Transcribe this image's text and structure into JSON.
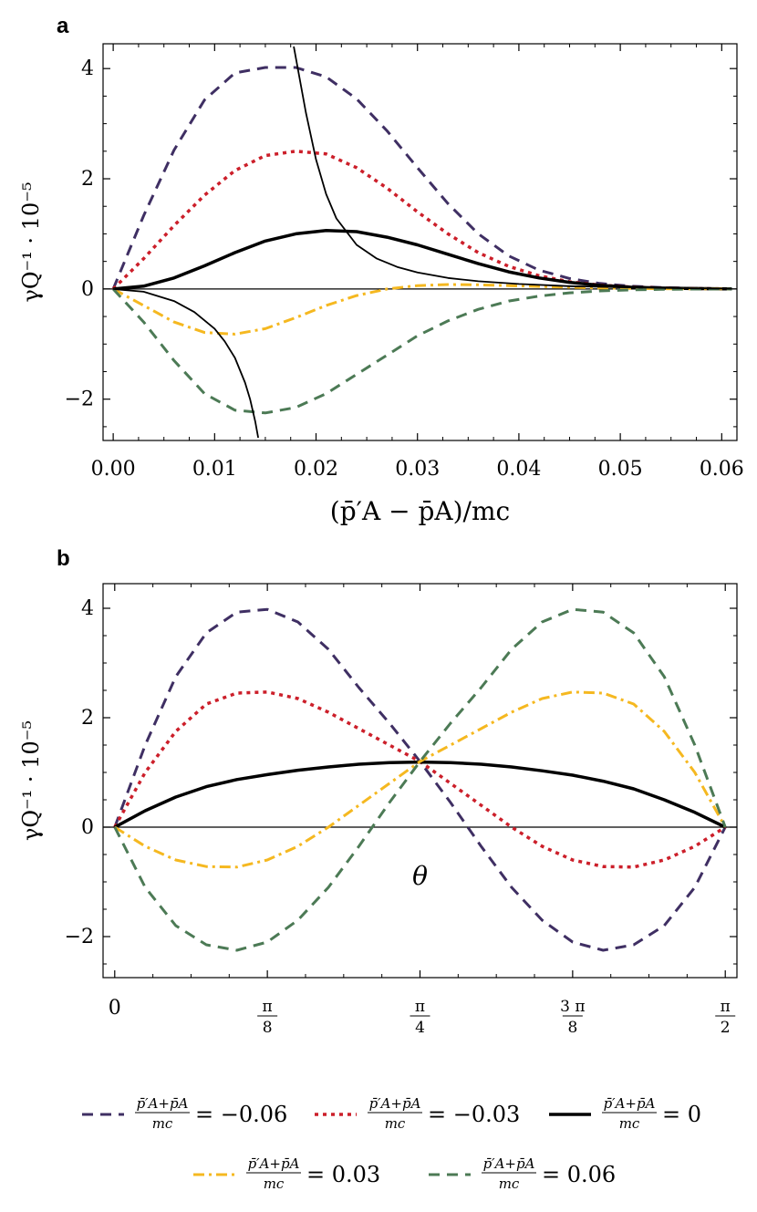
{
  "chart_data": [
    {
      "panel": "a",
      "type": "line",
      "xlabel": "(p̄′A − p̄A)/mc",
      "ylabel": "γQ⁻¹ · 10⁻⁵",
      "xlim": [
        -0.001,
        0.0615
      ],
      "ylim": [
        -2.75,
        4.45
      ],
      "x_ticks": [
        "0.00",
        "0.01",
        "0.02",
        "0.03",
        "0.04",
        "0.05",
        "0.06"
      ],
      "x_tick_values": [
        0,
        0.01,
        0.02,
        0.03,
        0.04,
        0.05,
        0.06
      ],
      "y_ticks": [
        "−2",
        "0",
        "2",
        "4"
      ],
      "y_tick_values": [
        -2,
        0,
        2,
        4
      ],
      "series": [
        {
          "name": "-0.06",
          "color": "#3f2f63",
          "dash": "dashed",
          "x": [
            0,
            0.003,
            0.006,
            0.009,
            0.012,
            0.015,
            0.018,
            0.021,
            0.024,
            0.027,
            0.03,
            0.033,
            0.036,
            0.039,
            0.042,
            0.045,
            0.048,
            0.051,
            0.054,
            0.057,
            0.06,
            0.061
          ],
          "y": [
            0,
            1.33,
            2.52,
            3.43,
            3.92,
            4.02,
            4.02,
            3.85,
            3.45,
            2.87,
            2.2,
            1.55,
            1.0,
            0.6,
            0.34,
            0.19,
            0.1,
            0.05,
            0.025,
            0.012,
            0.005,
            0.004
          ]
        },
        {
          "name": "-0.03",
          "color": "#cc1f2a",
          "dash": "dotted",
          "x": [
            0,
            0.003,
            0.006,
            0.009,
            0.012,
            0.015,
            0.018,
            0.021,
            0.024,
            0.027,
            0.03,
            0.033,
            0.036,
            0.039,
            0.042,
            0.045,
            0.048,
            0.051,
            0.054,
            0.057,
            0.06,
            0.061
          ],
          "y": [
            0,
            0.55,
            1.15,
            1.7,
            2.15,
            2.42,
            2.5,
            2.45,
            2.2,
            1.83,
            1.4,
            1.0,
            0.66,
            0.41,
            0.24,
            0.13,
            0.07,
            0.035,
            0.017,
            0.008,
            0.003,
            0.002
          ]
        },
        {
          "name": "0",
          "color": "#000000",
          "dash": "solid",
          "x": [
            0,
            0.003,
            0.006,
            0.009,
            0.012,
            0.015,
            0.018,
            0.021,
            0.024,
            0.027,
            0.03,
            0.033,
            0.036,
            0.039,
            0.042,
            0.045,
            0.048,
            0.051,
            0.054,
            0.057,
            0.06,
            0.061
          ],
          "y": [
            0,
            0.05,
            0.2,
            0.42,
            0.66,
            0.87,
            1.0,
            1.06,
            1.04,
            0.94,
            0.8,
            0.63,
            0.46,
            0.31,
            0.2,
            0.12,
            0.065,
            0.033,
            0.016,
            0.008,
            0.003,
            0.002
          ]
        },
        {
          "name": "0.03",
          "color": "#f5b820",
          "dash": "dashdot",
          "x": [
            0,
            0.003,
            0.006,
            0.009,
            0.012,
            0.015,
            0.018,
            0.021,
            0.024,
            0.027,
            0.03,
            0.033,
            0.036,
            0.039,
            0.042,
            0.045,
            0.048,
            0.051,
            0.054,
            0.057,
            0.06,
            0.061
          ],
          "y": [
            0,
            -0.3,
            -0.6,
            -0.79,
            -0.82,
            -0.72,
            -0.52,
            -0.3,
            -0.12,
            0.0,
            0.06,
            0.08,
            0.075,
            0.06,
            0.045,
            0.03,
            0.018,
            0.01,
            0.005,
            0.002,
            0.001,
            0.0
          ]
        },
        {
          "name": "0.06",
          "color": "#4c7a55",
          "dash": "dashed",
          "x": [
            0,
            0.003,
            0.006,
            0.009,
            0.012,
            0.015,
            0.018,
            0.021,
            0.024,
            0.027,
            0.03,
            0.033,
            0.036,
            0.039,
            0.042,
            0.045,
            0.048,
            0.051,
            0.054,
            0.057,
            0.06,
            0.061
          ],
          "y": [
            0,
            -0.6,
            -1.3,
            -1.9,
            -2.2,
            -2.25,
            -2.15,
            -1.9,
            -1.55,
            -1.2,
            -0.85,
            -0.58,
            -0.37,
            -0.22,
            -0.13,
            -0.07,
            -0.035,
            -0.017,
            -0.008,
            -0.003,
            -0.001,
            -0.001
          ]
        },
        {
          "name": "upper boundary",
          "color": "#000000",
          "dash": "thin",
          "x": [
            0.0178,
            0.019,
            0.02,
            0.021,
            0.022,
            0.024,
            0.026,
            0.028,
            0.03,
            0.033,
            0.036,
            0.04,
            0.045,
            0.05,
            0.055,
            0.061
          ],
          "y": [
            4.4,
            3.2,
            2.35,
            1.72,
            1.28,
            0.8,
            0.55,
            0.4,
            0.3,
            0.2,
            0.14,
            0.09,
            0.05,
            0.03,
            0.015,
            0.005
          ]
        },
        {
          "name": "lower boundary",
          "color": "#000000",
          "dash": "thin",
          "x": [
            0,
            0.003,
            0.006,
            0.008,
            0.01,
            0.011,
            0.012,
            0.013,
            0.0135,
            0.014,
            0.0143
          ],
          "y": [
            0,
            -0.05,
            -0.22,
            -0.42,
            -0.72,
            -0.95,
            -1.25,
            -1.7,
            -2.0,
            -2.4,
            -2.7
          ]
        }
      ]
    },
    {
      "panel": "b",
      "type": "line",
      "xlabel": "θ",
      "ylabel": "γQ⁻¹ · 10⁻⁵",
      "xlim": [
        -0.03,
        1.6008
      ],
      "ylim": [
        -2.75,
        4.45
      ],
      "x_ticks": [
        {
          "num": "",
          "den": "",
          "plain": "0"
        },
        {
          "num": "π",
          "den": "8",
          "plain": ""
        },
        {
          "num": "π",
          "den": "4",
          "plain": ""
        },
        {
          "num": "3 π",
          "den": "8",
          "plain": ""
        },
        {
          "num": "π",
          "den": "2",
          "plain": ""
        }
      ],
      "x_tick_values": [
        0,
        0.3927,
        0.7854,
        1.1781,
        1.5708
      ],
      "y_ticks": [
        "−2",
        "0",
        "2",
        "4"
      ],
      "y_tick_values": [
        -2,
        0,
        2,
        4
      ],
      "series": [
        {
          "name": "-0.06",
          "color": "#3f2f63",
          "dash": "dashed",
          "x": [
            0,
            0.0785,
            0.157,
            0.2356,
            0.3142,
            0.3927,
            0.4712,
            0.5498,
            0.6283,
            0.7069,
            0.7854,
            0.864,
            0.9425,
            1.021,
            1.0996,
            1.1781,
            1.2566,
            1.3352,
            1.4137,
            1.4923,
            1.5708
          ],
          "y": [
            0,
            1.5,
            2.75,
            3.55,
            3.93,
            3.98,
            3.75,
            3.25,
            2.55,
            1.9,
            1.2,
            0.45,
            -0.35,
            -1.1,
            -1.7,
            -2.1,
            -2.25,
            -2.15,
            -1.8,
            -1.1,
            0
          ]
        },
        {
          "name": "-0.03",
          "color": "#cc1f2a",
          "dash": "dotted",
          "x": [
            0,
            0.0785,
            0.157,
            0.2356,
            0.3142,
            0.3927,
            0.4712,
            0.5498,
            0.6283,
            0.7069,
            0.7854,
            0.864,
            0.9425,
            1.021,
            1.0996,
            1.1781,
            1.2566,
            1.3352,
            1.4137,
            1.4923,
            1.5708
          ],
          "y": [
            0,
            1.0,
            1.75,
            2.25,
            2.45,
            2.47,
            2.35,
            2.1,
            1.8,
            1.5,
            1.2,
            0.8,
            0.4,
            0.0,
            -0.35,
            -0.6,
            -0.72,
            -0.73,
            -0.6,
            -0.35,
            0
          ]
        },
        {
          "name": "0",
          "color": "#000000",
          "dash": "solid",
          "x": [
            0,
            0.0785,
            0.157,
            0.2356,
            0.3142,
            0.3927,
            0.4712,
            0.5498,
            0.6283,
            0.7069,
            0.7854,
            0.864,
            0.9425,
            1.021,
            1.0996,
            1.1781,
            1.2566,
            1.3352,
            1.4137,
            1.4923,
            1.5708
          ],
          "y": [
            0,
            0.3,
            0.55,
            0.74,
            0.87,
            0.96,
            1.04,
            1.1,
            1.15,
            1.18,
            1.19,
            1.18,
            1.15,
            1.1,
            1.03,
            0.95,
            0.84,
            0.7,
            0.5,
            0.27,
            0
          ]
        },
        {
          "name": "0.03",
          "color": "#f5b820",
          "dash": "dashdot",
          "x": [
            0,
            0.0785,
            0.157,
            0.2356,
            0.3142,
            0.3927,
            0.4712,
            0.5498,
            0.6283,
            0.7069,
            0.7854,
            0.864,
            0.9425,
            1.021,
            1.0996,
            1.1781,
            1.2566,
            1.3352,
            1.4137,
            1.4923,
            1.5708
          ],
          "y": [
            0,
            -0.35,
            -0.6,
            -0.72,
            -0.73,
            -0.6,
            -0.35,
            0.0,
            0.4,
            0.8,
            1.2,
            1.5,
            1.8,
            2.1,
            2.35,
            2.47,
            2.45,
            2.25,
            1.75,
            1.0,
            0
          ]
        },
        {
          "name": "0.06",
          "color": "#4c7a55",
          "dash": "dashed",
          "x": [
            0,
            0.0785,
            0.157,
            0.2356,
            0.3142,
            0.3927,
            0.4712,
            0.5498,
            0.6283,
            0.7069,
            0.7854,
            0.864,
            0.9425,
            1.021,
            1.0996,
            1.1781,
            1.2566,
            1.3352,
            1.4137,
            1.4923,
            1.5708
          ],
          "y": [
            0,
            -1.1,
            -1.8,
            -2.15,
            -2.25,
            -2.1,
            -1.7,
            -1.1,
            -0.35,
            0.45,
            1.2,
            1.9,
            2.55,
            3.25,
            3.75,
            3.98,
            3.93,
            3.55,
            2.75,
            1.5,
            0
          ]
        }
      ]
    }
  ],
  "panels": [
    {
      "label": "a",
      "xlabel": "(p̄′A − p̄A)/mc"
    },
    {
      "label": "b",
      "xlabel": "θ"
    }
  ],
  "legend": {
    "placement": "bottom",
    "entries": [
      {
        "numerator": "p̄′A+p̄A",
        "denominator": "mc",
        "value_text": "= −0.06",
        "color": "#3f2f63",
        "dash": "dashed"
      },
      {
        "numerator": "p̄′A+p̄A",
        "denominator": "mc",
        "value_text": "= −0.03",
        "color": "#cc1f2a",
        "dash": "dotted"
      },
      {
        "numerator": "p̄′A+p̄A",
        "denominator": "mc",
        "value_text": "= 0",
        "color": "#000000",
        "dash": "solid"
      },
      {
        "numerator": "p̄′A+p̄A",
        "denominator": "mc",
        "value_text": "= 0.03",
        "color": "#f5b820",
        "dash": "dashdot"
      },
      {
        "numerator": "p̄′A+p̄A",
        "denominator": "mc",
        "value_text": "= 0.06",
        "color": "#4c7a55",
        "dash": "dashed"
      }
    ]
  }
}
